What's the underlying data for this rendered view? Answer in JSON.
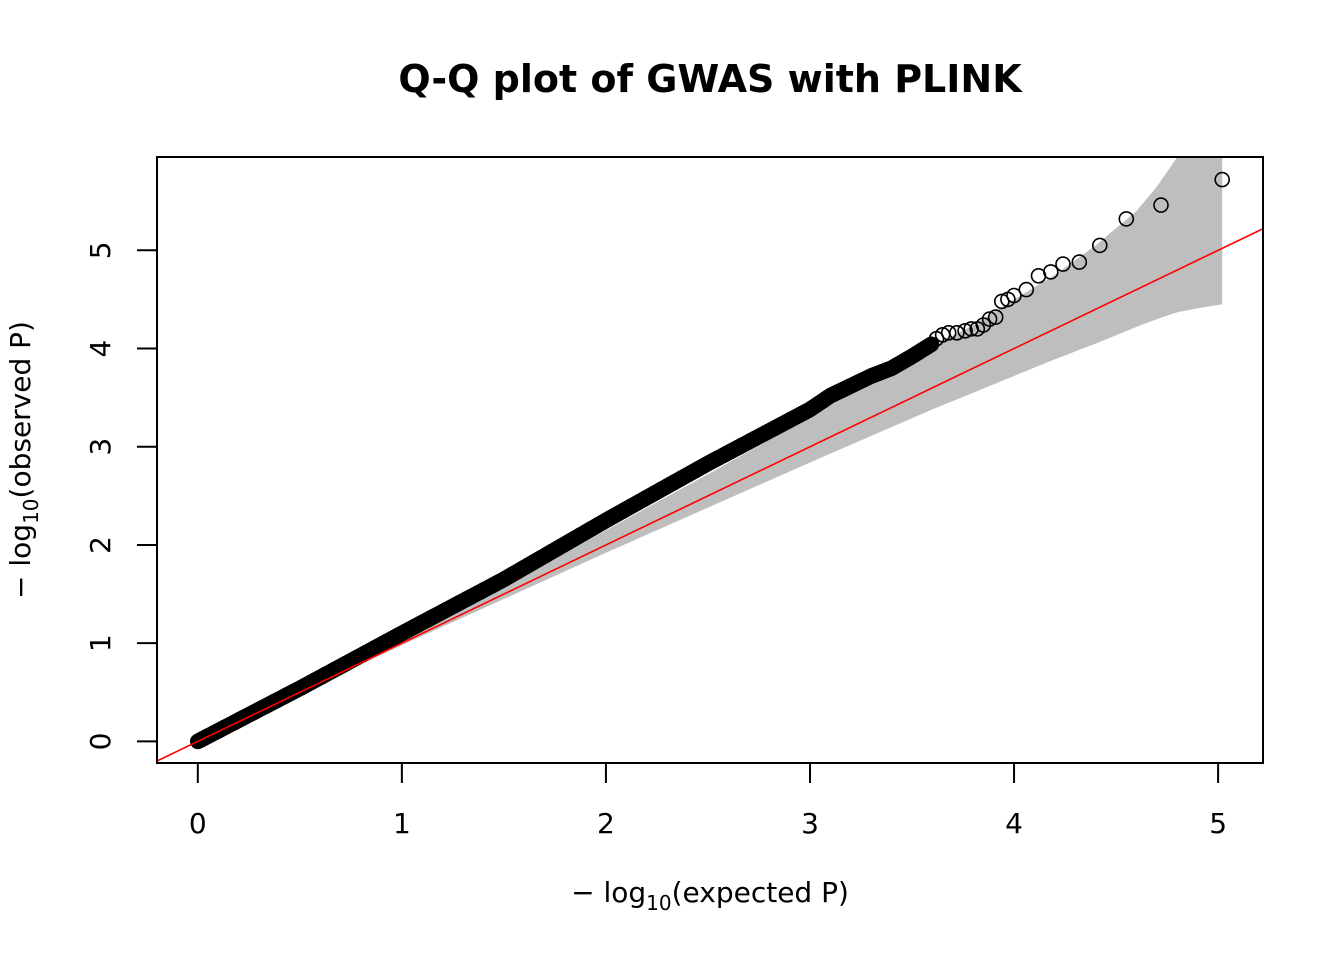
{
  "chart_data": {
    "type": "scatter",
    "title": "Q-Q plot of GWAS with PLINK",
    "xlabel": {
      "prefix": "− log",
      "sub": "10",
      "suffix": "(expected P)"
    },
    "ylabel": {
      "prefix": "− log",
      "sub": "10",
      "suffix": "(observed P)"
    },
    "xlim": [
      -0.2,
      5.22
    ],
    "ylim": [
      -0.22,
      5.95
    ],
    "x_ticks": [
      "0",
      "1",
      "2",
      "3",
      "4",
      "5"
    ],
    "y_ticks": [
      "0",
      "1",
      "2",
      "3",
      "4",
      "5"
    ],
    "grid": false,
    "colors": {
      "points": "#000000",
      "reference_line": "#ff0000",
      "confidence_band": "#bebebe"
    },
    "reference_line": {
      "intercept": 0,
      "slope": 1
    },
    "confidence_band": {
      "x": [
        0,
        1,
        1.5,
        2,
        2.5,
        3,
        3.2,
        3.4,
        3.6,
        3.8,
        4.0,
        4.2,
        4.4,
        4.6,
        4.7,
        4.8,
        4.9,
        5.02
      ],
      "upper": [
        0,
        1.05,
        1.6,
        2.15,
        2.72,
        3.3,
        3.55,
        3.78,
        4.02,
        4.24,
        4.5,
        4.75,
        5.05,
        5.4,
        5.65,
        5.95,
        5.95,
        5.95
      ],
      "lower": [
        0,
        0.98,
        1.45,
        1.92,
        2.38,
        2.84,
        3.02,
        3.2,
        3.38,
        3.55,
        3.72,
        3.89,
        4.05,
        4.22,
        4.3,
        4.37,
        4.41,
        4.45
      ]
    },
    "dense_curve": {
      "x": [
        0,
        0.5,
        1,
        1.5,
        2,
        2.5,
        3,
        3.1,
        3.2,
        3.3,
        3.4,
        3.5,
        3.6
      ],
      "y": [
        0,
        0.54,
        1.1,
        1.65,
        2.25,
        2.83,
        3.38,
        3.52,
        3.62,
        3.72,
        3.8,
        3.92,
        4.05
      ]
    },
    "tail_points": {
      "x": [
        3.62,
        3.65,
        3.68,
        3.72,
        3.76,
        3.79,
        3.82,
        3.85,
        3.88,
        3.91,
        3.94,
        3.97,
        4.0,
        4.06,
        4.12,
        4.18,
        4.24,
        4.32,
        4.42,
        4.55,
        4.72,
        5.02
      ],
      "y": [
        4.1,
        4.14,
        4.16,
        4.16,
        4.18,
        4.2,
        4.2,
        4.24,
        4.3,
        4.32,
        4.48,
        4.5,
        4.54,
        4.6,
        4.74,
        4.78,
        4.86,
        4.88,
        5.05,
        5.32,
        5.46,
        5.72
      ]
    }
  }
}
